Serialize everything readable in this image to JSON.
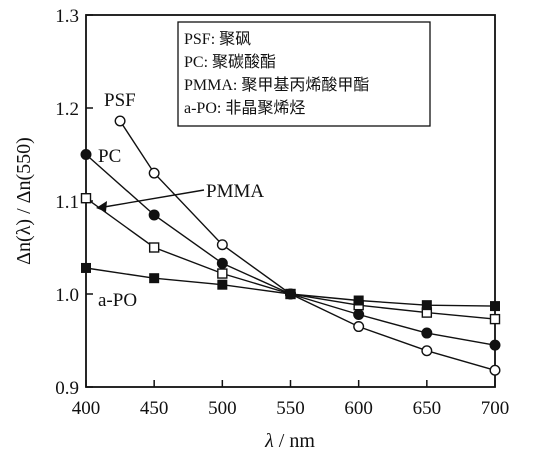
{
  "chart_data": {
    "type": "line",
    "xlabel_symbol": "λ",
    "xlabel_unit": " / nm",
    "ylabel": "Δn(λ) / Δn(550)",
    "xlim": [
      400,
      700
    ],
    "ylim": [
      0.9,
      1.3
    ],
    "x_ticks": [
      400,
      450,
      500,
      550,
      600,
      650,
      700
    ],
    "y_ticks": [
      0.9,
      1.0,
      1.1,
      1.2,
      1.3
    ],
    "y_tick_labels": [
      "0.9",
      "1.0",
      "1.1",
      "1.2",
      "1.3"
    ],
    "grid": false,
    "legend_position": "top-right",
    "legend": [
      "PSF: 聚砜",
      "PC: 聚碳酸酯",
      "PMMA: 聚甲基丙烯酸甲酯",
      "a-PO: 非晶聚烯烃"
    ],
    "series": [
      {
        "name": "PSF",
        "marker": "open-circle",
        "points": [
          [
            425,
            1.186
          ],
          [
            450,
            1.13
          ],
          [
            500,
            1.053
          ],
          [
            550,
            1.0
          ],
          [
            600,
            0.965
          ],
          [
            650,
            0.939
          ],
          [
            700,
            0.918
          ]
        ]
      },
      {
        "name": "PC",
        "marker": "filled-circle",
        "points": [
          [
            400,
            1.15
          ],
          [
            450,
            1.085
          ],
          [
            500,
            1.033
          ],
          [
            550,
            1.0
          ],
          [
            600,
            0.978
          ],
          [
            650,
            0.958
          ],
          [
            700,
            0.945
          ]
        ]
      },
      {
        "name": "PMMA",
        "marker": "open-square",
        "points": [
          [
            400,
            1.103
          ],
          [
            450,
            1.05
          ],
          [
            500,
            1.022
          ],
          [
            550,
            1.0
          ],
          [
            600,
            0.988
          ],
          [
            650,
            0.98
          ],
          [
            700,
            0.973
          ]
        ]
      },
      {
        "name": "a-PO",
        "marker": "filled-square",
        "points": [
          [
            400,
            1.028
          ],
          [
            450,
            1.017
          ],
          [
            500,
            1.01
          ],
          [
            550,
            1.0
          ],
          [
            600,
            0.993
          ],
          [
            650,
            0.988
          ],
          [
            700,
            0.987
          ]
        ]
      }
    ]
  }
}
